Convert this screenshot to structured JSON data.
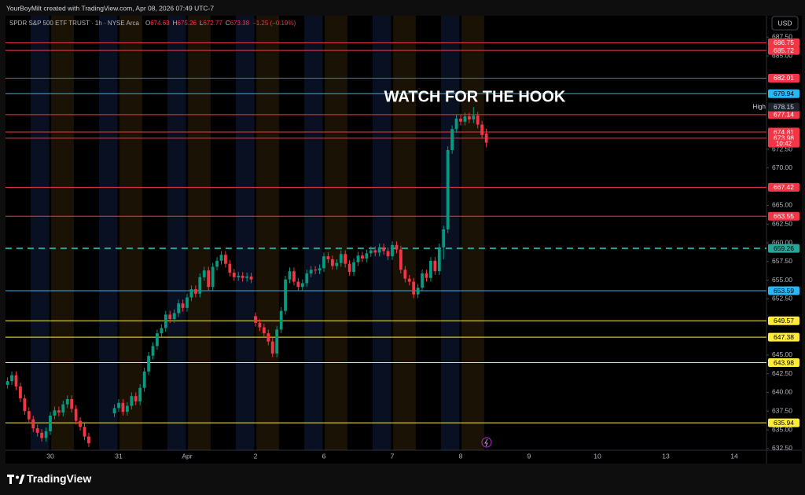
{
  "chart_data": {
    "type": "candlestick",
    "credit": "YourBoyMilt created with TradingView.com, Apr 08, 2026 07:49 UTC-7",
    "title": "SPDR S&P 500 ETF TRUST · 1h · NYSE Arca",
    "ohlc_labels": [
      "O",
      "H",
      "L",
      "C"
    ],
    "change": "−1.25 (−0.19%)",
    "annotation": "WATCH FOR THE HOOK",
    "currency": "USD",
    "countdown": "10:42",
    "high_label": "High",
    "brand": "TradingView",
    "up_color": "#089981",
    "down_color": "#f23645",
    "grid": false,
    "ylim": [
      632.27,
      690.36
    ],
    "yticks": [
      {
        "value": 632.5,
        "label": "632.50"
      },
      {
        "value": 635,
        "label": "635.00"
      },
      {
        "value": 637.5,
        "label": "637.50"
      },
      {
        "value": 640,
        "label": "640.00"
      },
      {
        "value": 642.5,
        "label": "642.50"
      },
      {
        "value": 645,
        "label": "645.00"
      },
      {
        "value": 652.5,
        "label": "652.50"
      },
      {
        "value": 655,
        "label": "655.00"
      },
      {
        "value": 657.5,
        "label": "657.50"
      },
      {
        "value": 660,
        "label": "660.00"
      },
      {
        "value": 662.5,
        "label": "662.50"
      },
      {
        "value": 665,
        "label": "665.00"
      },
      {
        "value": 670,
        "label": "670.00"
      },
      {
        "value": 672.5,
        "label": "672.50"
      },
      {
        "value": 685,
        "label": "685.00"
      },
      {
        "value": 687.5,
        "label": "687.50"
      }
    ],
    "levels": [
      {
        "value": 686.75,
        "color": "#f23645",
        "label_color": "#ffffff",
        "style": "solid"
      },
      {
        "value": 685.72,
        "color": "#f23645",
        "label_color": "#ffffff",
        "style": "solid"
      },
      {
        "value": 682.01,
        "color": "#f23645",
        "label_color": "#ffffff",
        "style": "solid"
      },
      {
        "value": 679.94,
        "color": "#29b6f6",
        "label_color": "#000000",
        "style": "solid"
      },
      {
        "value": 677.14,
        "color": "#f23645",
        "label_color": "#ffffff",
        "style": "solid"
      },
      {
        "value": 674.81,
        "color": "#f23645",
        "label_color": "#ffffff",
        "style": "solid"
      },
      {
        "value": 673.98,
        "color": "#f23645",
        "label_color": "#ffffff",
        "style": "solid"
      },
      {
        "value": 667.42,
        "color": "#f23645",
        "label_color": "#ffffff",
        "style": "solid"
      },
      {
        "value": 663.55,
        "color": "#f23645",
        "label_color": "#ffffff",
        "style": "solid"
      },
      {
        "value": 659.26,
        "color": "#26a69a",
        "label_color": "#000000",
        "style": "dashed"
      },
      {
        "value": 653.59,
        "color": "#29b6f6",
        "label_color": "#000000",
        "style": "solid"
      },
      {
        "value": 649.57,
        "color": "#ffeb3b",
        "label_color": "#000000",
        "style": "solid"
      },
      {
        "value": 647.38,
        "color": "#ffeb3b",
        "label_color": "#000000",
        "style": "solid"
      },
      {
        "value": 643.98,
        "color": "#ffeb3b",
        "label_color": "#000000",
        "style": "solid"
      },
      {
        "value": 635.94,
        "color": "#ffeb3b",
        "label_color": "#000000",
        "style": "solid"
      }
    ],
    "categories": [
      null,
      null,
      null,
      null,
      null,
      null,
      null,
      null,
      null,
      null,
      "30",
      null,
      null,
      null,
      null,
      null,
      null,
      null,
      null,
      null,
      null,
      null,
      null,
      null,
      null,
      null,
      "31",
      null,
      null,
      null,
      null,
      null,
      null,
      null,
      null,
      null,
      null,
      null,
      null,
      null,
      null,
      null,
      "Apr",
      null,
      null,
      null,
      null,
      null,
      null,
      null,
      null,
      null,
      null,
      null,
      null,
      null,
      null,
      null,
      "2",
      null,
      null,
      null,
      null,
      null,
      null,
      null,
      null,
      null,
      null,
      null,
      null,
      null,
      null,
      null,
      "6",
      null,
      null,
      null,
      null,
      null,
      null,
      null,
      null,
      null,
      null,
      null,
      null,
      null,
      null,
      null,
      "7",
      null,
      null,
      null,
      null,
      null,
      null,
      null,
      null,
      null,
      null,
      null,
      null,
      null,
      null,
      null,
      "8",
      null,
      null,
      null,
      null,
      null,
      null,
      null,
      null,
      null,
      null,
      null,
      null,
      null,
      null,
      null,
      "9",
      null,
      null,
      null,
      null,
      null,
      null,
      null,
      null,
      null,
      null,
      null,
      null,
      null,
      null,
      null,
      "10",
      null,
      null,
      null,
      null,
      null,
      null,
      null,
      null,
      null,
      null,
      null,
      null,
      null,
      null,
      null,
      "13",
      null,
      null,
      null,
      null,
      null,
      null,
      null,
      null,
      null,
      null,
      null,
      null,
      null,
      null,
      null,
      "14",
      null,
      null,
      null,
      null,
      null,
      null,
      null
    ],
    "open": [
      641.0,
      641.5,
      642.3,
      640.8,
      639.2,
      637.5,
      636.4,
      635.2,
      634.6,
      633.9,
      634.8,
      636.9,
      637.6,
      637.3,
      638.4,
      639.1,
      637.8,
      636.2,
      635.4,
      634.1,
      null,
      null,
      null,
      null,
      null,
      637.2,
      637.9,
      638.6,
      637.4,
      638.2,
      639.5,
      638.8,
      640.6,
      642.8,
      644.9,
      646.2,
      647.9,
      648.6,
      650.4,
      649.8,
      650.6,
      651.9,
      651.3,
      652.7,
      653.8,
      653.2,
      655.4,
      656.3,
      654.1,
      656.8,
      657.6,
      658.4,
      657.2,
      656.0,
      655.4,
      655.6,
      655.3,
      655.5,
      650.2,
      649.3,
      648.7,
      647.9,
      646.8,
      645.2,
      648.4,
      650.9,
      655.1,
      656.2,
      654.8,
      654.1,
      654.6,
      655.9,
      656.4,
      656.3,
      656.6,
      658.2,
      657.8,
      656.9,
      657.3,
      658.5,
      657.2,
      656.1,
      657.4,
      658.3,
      657.9,
      658.6,
      659.0,
      658.7,
      659.4,
      658.9,
      658.2,
      659.7,
      659.1,
      656.4,
      655.2,
      654.8,
      653.1,
      654.0,
      655.9,
      655.3,
      657.6,
      656.2,
      659.4,
      661.8,
      672.4,
      675.2,
      676.6,
      676.2,
      676.9,
      676.5,
      677.0,
      675.8,
      674.63,
      null,
      null,
      null,
      null,
      null,
      null,
      null,
      null,
      null,
      null,
      null,
      null,
      null,
      null,
      null,
      null,
      null,
      null,
      null,
      null,
      null,
      null,
      null,
      null,
      null,
      null,
      null,
      null,
      null,
      null,
      null,
      null,
      null,
      null,
      null,
      null,
      null,
      null,
      null,
      null,
      null,
      null,
      null,
      null,
      null,
      null,
      null,
      null,
      null,
      null,
      null,
      null,
      null,
      null,
      null,
      null,
      null,
      null,
      null,
      null,
      null,
      null,
      null,
      null,
      null
    ],
    "high": [
      642.0,
      642.8,
      642.8,
      641.3,
      639.7,
      638.0,
      636.9,
      635.7,
      635.1,
      635.3,
      637.4,
      638.1,
      638.1,
      638.9,
      639.6,
      639.6,
      638.3,
      636.7,
      635.9,
      634.6,
      null,
      null,
      null,
      null,
      null,
      638.4,
      639.1,
      639.1,
      638.7,
      640.0,
      640.0,
      641.1,
      643.3,
      645.4,
      646.7,
      648.4,
      649.1,
      650.9,
      650.9,
      651.1,
      652.4,
      652.4,
      653.2,
      654.3,
      654.3,
      655.9,
      656.8,
      656.8,
      657.3,
      658.1,
      658.9,
      658.9,
      657.7,
      656.5,
      656.1,
      656.1,
      656.0,
      656.0,
      650.7,
      649.8,
      649.2,
      648.4,
      647.3,
      648.9,
      651.4,
      655.6,
      656.7,
      656.7,
      655.3,
      655.1,
      656.4,
      656.9,
      656.9,
      657.1,
      658.7,
      658.7,
      658.3,
      657.8,
      659.0,
      659.0,
      657.7,
      657.9,
      658.8,
      658.8,
      659.1,
      659.5,
      659.5,
      659.9,
      659.9,
      659.4,
      660.2,
      660.2,
      659.6,
      656.9,
      655.7,
      655.3,
      654.5,
      656.4,
      656.4,
      658.1,
      658.1,
      659.9,
      662.3,
      672.9,
      675.7,
      677.1,
      677.1,
      677.4,
      677.4,
      678.15,
      677.5,
      676.3,
      675.26,
      null,
      null,
      null,
      null,
      null,
      null,
      null,
      null,
      null,
      null,
      null,
      null,
      null,
      null,
      null,
      null,
      null,
      null,
      null,
      null,
      null,
      null,
      null,
      null,
      null,
      null,
      null,
      null,
      null,
      null,
      null,
      null,
      null,
      null,
      null,
      null,
      null,
      null,
      null,
      null,
      null,
      null,
      null,
      null,
      null,
      null,
      null,
      null,
      null,
      null,
      null,
      null,
      null,
      null,
      null,
      null,
      null,
      null,
      null,
      null,
      null,
      null,
      null,
      null,
      null
    ],
    "low": [
      640.5,
      641.0,
      640.3,
      638.7,
      637.0,
      635.9,
      634.7,
      634.1,
      633.4,
      633.4,
      634.3,
      636.4,
      636.8,
      636.8,
      637.9,
      637.3,
      635.7,
      634.9,
      633.6,
      632.7,
      null,
      null,
      null,
      null,
      null,
      636.7,
      637.4,
      636.9,
      636.9,
      637.7,
      638.3,
      638.3,
      640.1,
      642.3,
      644.4,
      645.7,
      647.4,
      648.1,
      649.3,
      649.3,
      650.1,
      650.8,
      650.8,
      652.2,
      652.7,
      652.7,
      654.9,
      653.6,
      653.6,
      656.3,
      657.1,
      656.7,
      655.5,
      654.9,
      654.9,
      654.8,
      654.8,
      654.6,
      648.8,
      648.2,
      647.4,
      646.3,
      644.7,
      644.7,
      647.9,
      650.4,
      654.6,
      654.3,
      653.6,
      653.6,
      654.1,
      655.4,
      655.8,
      655.8,
      656.1,
      657.3,
      656.4,
      656.4,
      656.8,
      656.7,
      655.6,
      655.6,
      656.9,
      657.4,
      657.4,
      658.1,
      658.2,
      658.2,
      658.4,
      657.7,
      657.7,
      658.6,
      655.9,
      654.7,
      654.3,
      652.6,
      652.6,
      653.5,
      654.8,
      654.8,
      655.7,
      655.7,
      657.8,
      661.3,
      671.9,
      674.7,
      675.7,
      675.7,
      676.0,
      676.0,
      675.3,
      673.9,
      672.77,
      null,
      null,
      null,
      null,
      null,
      null,
      null,
      null,
      null,
      null,
      null,
      null,
      null,
      null,
      null,
      null,
      null,
      null,
      null,
      null,
      null,
      null,
      null,
      null,
      null,
      null,
      null,
      null,
      null,
      null,
      null,
      null,
      null,
      null,
      null,
      null,
      null,
      null,
      null,
      null,
      null,
      null,
      null,
      null,
      null,
      null,
      null,
      null,
      null,
      null,
      null,
      null,
      null,
      null,
      null,
      null,
      null,
      null,
      null,
      null,
      null,
      null,
      null,
      null,
      null
    ],
    "close": [
      641.5,
      642.3,
      640.8,
      639.2,
      637.5,
      636.4,
      635.2,
      634.6,
      633.9,
      634.8,
      636.9,
      637.6,
      637.3,
      638.4,
      639.1,
      637.8,
      636.2,
      635.4,
      634.1,
      633.2,
      null,
      null,
      null,
      null,
      null,
      637.9,
      638.6,
      637.4,
      638.2,
      639.5,
      638.8,
      640.6,
      642.8,
      644.9,
      646.2,
      647.9,
      648.6,
      650.4,
      649.8,
      650.6,
      651.9,
      651.3,
      652.7,
      653.8,
      653.2,
      655.4,
      656.3,
      654.1,
      656.8,
      657.6,
      658.4,
      657.2,
      656.0,
      655.4,
      655.6,
      655.3,
      655.5,
      655.1,
      649.3,
      648.7,
      647.9,
      646.8,
      645.2,
      648.4,
      650.9,
      655.1,
      656.2,
      654.8,
      654.1,
      654.6,
      655.9,
      656.4,
      656.3,
      656.6,
      658.2,
      657.8,
      656.9,
      657.3,
      658.5,
      657.2,
      656.1,
      657.4,
      658.3,
      657.9,
      658.6,
      659.0,
      658.7,
      659.4,
      658.9,
      658.2,
      659.7,
      659.1,
      656.4,
      655.2,
      654.8,
      653.1,
      654.0,
      655.9,
      655.3,
      657.6,
      656.2,
      659.4,
      661.8,
      672.4,
      675.2,
      676.6,
      676.2,
      676.9,
      676.5,
      677.0,
      675.8,
      674.4,
      673.38,
      null,
      null,
      null,
      null,
      null,
      null,
      null,
      null,
      null,
      null,
      null,
      null,
      null,
      null,
      null,
      null,
      null,
      null,
      null,
      null,
      null,
      null,
      null,
      null,
      null,
      null,
      null,
      null,
      null,
      null,
      null,
      null,
      null,
      null,
      null,
      null,
      null,
      null,
      null,
      null,
      null,
      null,
      null,
      null,
      null,
      null,
      null,
      null,
      null,
      null,
      null,
      null,
      null,
      null,
      null,
      null,
      null,
      null,
      null,
      null,
      null,
      null,
      null,
      null,
      null
    ]
  }
}
